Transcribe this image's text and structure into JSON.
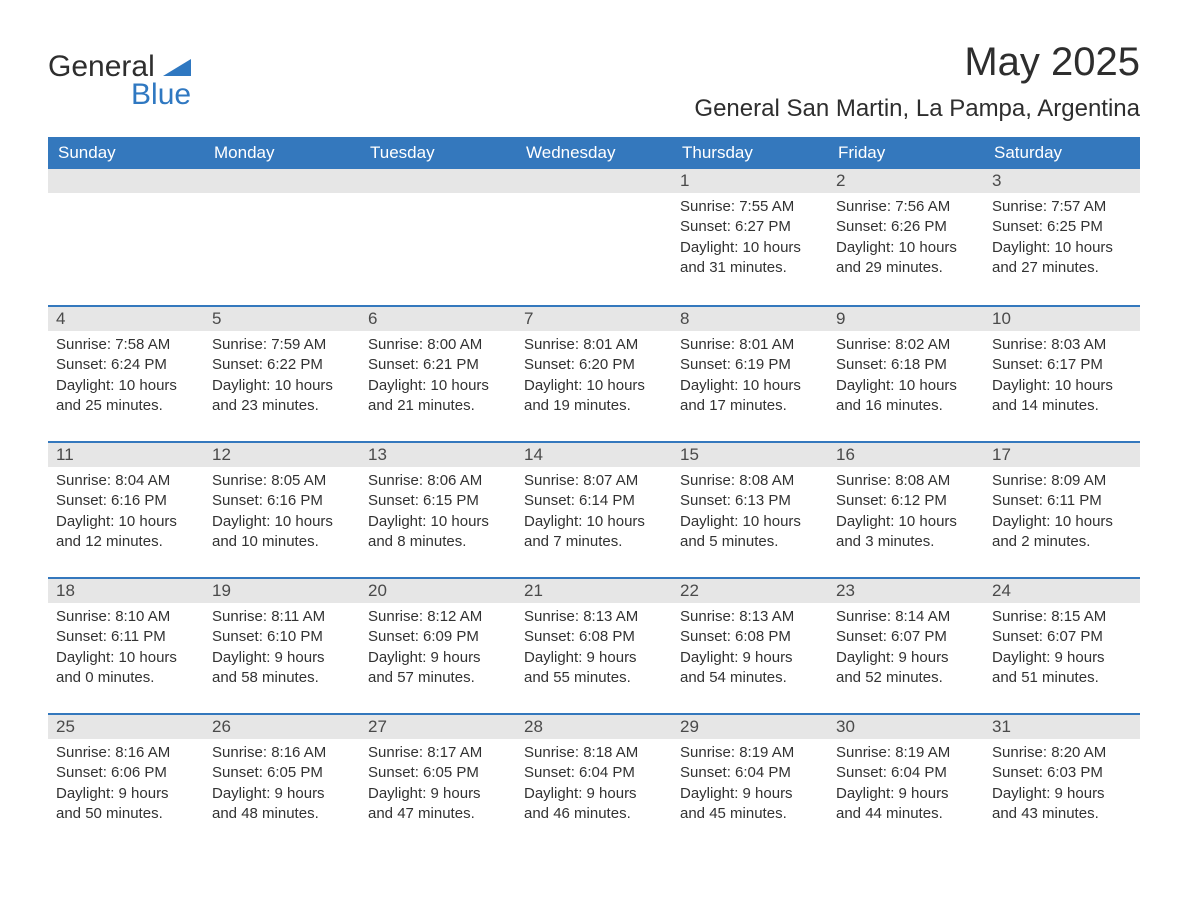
{
  "colors": {
    "brand_blue": "#2f78c1",
    "header_blue": "#3478bd",
    "header_text": "#ffffff",
    "daynum_bg": "#e6e6e6",
    "daynum_text": "#4a4a4a",
    "body_text": "#2e2e2e",
    "page_bg": "#ffffff",
    "row_divider": "#3478bd"
  },
  "typography": {
    "base_family": "Arial, Helvetica, sans-serif",
    "title_size_pt": 40,
    "location_size_pt": 24,
    "weekday_size_pt": 17,
    "body_size_pt": 15
  },
  "logo": {
    "word1": "General",
    "word2": "Blue"
  },
  "title": "May 2025",
  "location": "General San Martin, La Pampa, Argentina",
  "weekdays": [
    "Sunday",
    "Monday",
    "Tuesday",
    "Wednesday",
    "Thursday",
    "Friday",
    "Saturday"
  ],
  "labels": {
    "sunrise": "Sunrise:",
    "sunset": "Sunset:",
    "daylight": "Daylight:"
  },
  "calendar": {
    "first_weekday_index": 4,
    "days": [
      {
        "n": 1,
        "sunrise": "7:55 AM",
        "sunset": "6:27 PM",
        "daylight": "10 hours and 31 minutes."
      },
      {
        "n": 2,
        "sunrise": "7:56 AM",
        "sunset": "6:26 PM",
        "daylight": "10 hours and 29 minutes."
      },
      {
        "n": 3,
        "sunrise": "7:57 AM",
        "sunset": "6:25 PM",
        "daylight": "10 hours and 27 minutes."
      },
      {
        "n": 4,
        "sunrise": "7:58 AM",
        "sunset": "6:24 PM",
        "daylight": "10 hours and 25 minutes."
      },
      {
        "n": 5,
        "sunrise": "7:59 AM",
        "sunset": "6:22 PM",
        "daylight": "10 hours and 23 minutes."
      },
      {
        "n": 6,
        "sunrise": "8:00 AM",
        "sunset": "6:21 PM",
        "daylight": "10 hours and 21 minutes."
      },
      {
        "n": 7,
        "sunrise": "8:01 AM",
        "sunset": "6:20 PM",
        "daylight": "10 hours and 19 minutes."
      },
      {
        "n": 8,
        "sunrise": "8:01 AM",
        "sunset": "6:19 PM",
        "daylight": "10 hours and 17 minutes."
      },
      {
        "n": 9,
        "sunrise": "8:02 AM",
        "sunset": "6:18 PM",
        "daylight": "10 hours and 16 minutes."
      },
      {
        "n": 10,
        "sunrise": "8:03 AM",
        "sunset": "6:17 PM",
        "daylight": "10 hours and 14 minutes."
      },
      {
        "n": 11,
        "sunrise": "8:04 AM",
        "sunset": "6:16 PM",
        "daylight": "10 hours and 12 minutes."
      },
      {
        "n": 12,
        "sunrise": "8:05 AM",
        "sunset": "6:16 PM",
        "daylight": "10 hours and 10 minutes."
      },
      {
        "n": 13,
        "sunrise": "8:06 AM",
        "sunset": "6:15 PM",
        "daylight": "10 hours and 8 minutes."
      },
      {
        "n": 14,
        "sunrise": "8:07 AM",
        "sunset": "6:14 PM",
        "daylight": "10 hours and 7 minutes."
      },
      {
        "n": 15,
        "sunrise": "8:08 AM",
        "sunset": "6:13 PM",
        "daylight": "10 hours and 5 minutes."
      },
      {
        "n": 16,
        "sunrise": "8:08 AM",
        "sunset": "6:12 PM",
        "daylight": "10 hours and 3 minutes."
      },
      {
        "n": 17,
        "sunrise": "8:09 AM",
        "sunset": "6:11 PM",
        "daylight": "10 hours and 2 minutes."
      },
      {
        "n": 18,
        "sunrise": "8:10 AM",
        "sunset": "6:11 PM",
        "daylight": "10 hours and 0 minutes."
      },
      {
        "n": 19,
        "sunrise": "8:11 AM",
        "sunset": "6:10 PM",
        "daylight": "9 hours and 58 minutes."
      },
      {
        "n": 20,
        "sunrise": "8:12 AM",
        "sunset": "6:09 PM",
        "daylight": "9 hours and 57 minutes."
      },
      {
        "n": 21,
        "sunrise": "8:13 AM",
        "sunset": "6:08 PM",
        "daylight": "9 hours and 55 minutes."
      },
      {
        "n": 22,
        "sunrise": "8:13 AM",
        "sunset": "6:08 PM",
        "daylight": "9 hours and 54 minutes."
      },
      {
        "n": 23,
        "sunrise": "8:14 AM",
        "sunset": "6:07 PM",
        "daylight": "9 hours and 52 minutes."
      },
      {
        "n": 24,
        "sunrise": "8:15 AM",
        "sunset": "6:07 PM",
        "daylight": "9 hours and 51 minutes."
      },
      {
        "n": 25,
        "sunrise": "8:16 AM",
        "sunset": "6:06 PM",
        "daylight": "9 hours and 50 minutes."
      },
      {
        "n": 26,
        "sunrise": "8:16 AM",
        "sunset": "6:05 PM",
        "daylight": "9 hours and 48 minutes."
      },
      {
        "n": 27,
        "sunrise": "8:17 AM",
        "sunset": "6:05 PM",
        "daylight": "9 hours and 47 minutes."
      },
      {
        "n": 28,
        "sunrise": "8:18 AM",
        "sunset": "6:04 PM",
        "daylight": "9 hours and 46 minutes."
      },
      {
        "n": 29,
        "sunrise": "8:19 AM",
        "sunset": "6:04 PM",
        "daylight": "9 hours and 45 minutes."
      },
      {
        "n": 30,
        "sunrise": "8:19 AM",
        "sunset": "6:04 PM",
        "daylight": "9 hours and 44 minutes."
      },
      {
        "n": 31,
        "sunrise": "8:20 AM",
        "sunset": "6:03 PM",
        "daylight": "9 hours and 43 minutes."
      }
    ]
  }
}
